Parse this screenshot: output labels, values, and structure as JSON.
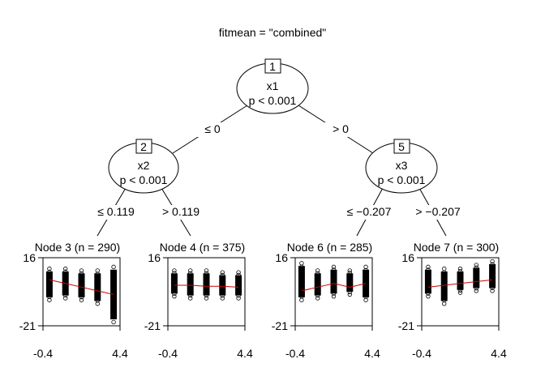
{
  "chart_data": {
    "type": "tree",
    "title": "fitmean = \"combined\"",
    "colors": {
      "line": "#000000",
      "fit": "#cc0000",
      "background": "#ffffff"
    },
    "inner_nodes": [
      {
        "id": "1",
        "var": "x1",
        "p": "p < 0.001"
      },
      {
        "id": "2",
        "var": "x2",
        "p": "p < 0.001"
      },
      {
        "id": "5",
        "var": "x3",
        "p": "p < 0.001"
      }
    ],
    "edges": [
      {
        "from": "1",
        "to": "2",
        "label": "≤ 0"
      },
      {
        "from": "1",
        "to": "5",
        "label": "> 0"
      },
      {
        "from": "2",
        "to": "3",
        "label": "≤ 0.119"
      },
      {
        "from": "2",
        "to": "4",
        "label": "> 0.119"
      },
      {
        "from": "5",
        "to": "6",
        "label": "≤ −0.207"
      },
      {
        "from": "5",
        "to": "7",
        "label": "> −0.207"
      }
    ],
    "leaves": [
      {
        "id": "3",
        "title": "Node 3 (n = 290)",
        "xlim": [
          -0.4,
          4.4
        ],
        "ylim": [
          -21,
          16
        ],
        "x_ticks": [
          "-0.4",
          "4.4"
        ],
        "y_ticks": [
          "16",
          "-21"
        ],
        "x": [
          0,
          1,
          2,
          3,
          4
        ],
        "fit": [
          4,
          2,
          0,
          -2,
          -4
        ],
        "spread": [
          [
            -7,
            10
          ],
          [
            -6,
            10
          ],
          [
            -7,
            9
          ],
          [
            -9,
            9
          ],
          [
            -19,
            11
          ]
        ]
      },
      {
        "id": "4",
        "title": "Node 4 (n = 375)",
        "xlim": [
          -0.4,
          4.4
        ],
        "ylim": [
          -21,
          16
        ],
        "x_ticks": [
          "-0.4",
          "4.4"
        ],
        "y_ticks": [
          "16",
          "-21"
        ],
        "x": [
          0,
          1,
          2,
          3,
          4
        ],
        "fit": [
          1,
          1,
          0.5,
          0.5,
          0
        ],
        "spread": [
          [
            -5,
            9
          ],
          [
            -6,
            9
          ],
          [
            -6,
            9
          ],
          [
            -6,
            8
          ],
          [
            -6,
            8
          ]
        ]
      },
      {
        "id": "6",
        "title": "Node 6 (n = 285)",
        "xlim": [
          -0.4,
          4.4
        ],
        "ylim": [
          -21,
          16
        ],
        "x_ticks": [
          "-0.4",
          "4.4"
        ],
        "y_ticks": [
          "16",
          "-21"
        ],
        "x": [
          0,
          1,
          2,
          3,
          4
        ],
        "fit": [
          -2,
          0,
          2,
          0,
          2
        ],
        "spread": [
          [
            -7,
            13
          ],
          [
            -6,
            9
          ],
          [
            -5,
            11
          ],
          [
            -4,
            9
          ],
          [
            -7,
            11
          ]
        ]
      },
      {
        "id": "7",
        "title": "Node 7 (n = 300)",
        "xlim": [
          -0.4,
          4.4
        ],
        "ylim": [
          -21,
          16
        ],
        "x_ticks": [
          "-0.4",
          "4.4"
        ],
        "y_ticks": [
          "16",
          "-21"
        ],
        "x": [
          0,
          1,
          2,
          3,
          4
        ],
        "fit": [
          0,
          1,
          2,
          3,
          4
        ],
        "spread": [
          [
            -5,
            11
          ],
          [
            -9,
            10
          ],
          [
            -3,
            10
          ],
          [
            -2,
            12
          ],
          [
            -2,
            14
          ]
        ]
      }
    ]
  }
}
